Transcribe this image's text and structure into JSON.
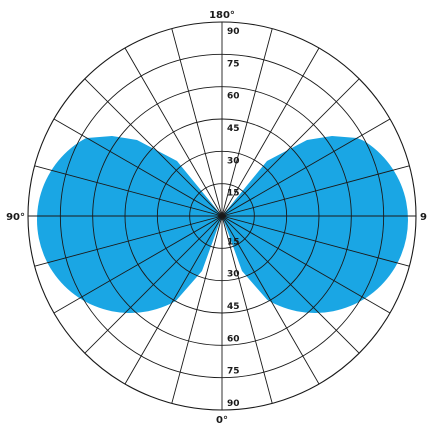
{
  "chart_data": {
    "type": "polar",
    "title": "",
    "fill_color": "#1aa6e4",
    "grid_color": "#1a1a1a",
    "background": "#ffffff",
    "radial_axis": {
      "range": [
        0,
        90
      ],
      "rings": [
        15,
        30,
        45,
        60,
        75,
        90
      ],
      "tick_labels": [
        "15",
        "30",
        "45",
        "60",
        "75",
        "90"
      ]
    },
    "angular_axis": {
      "spoke_step_deg": 15,
      "labels": [
        {
          "text": "0°",
          "angle": 0
        },
        {
          "text": "90°",
          "angle": 90
        },
        {
          "text": "180°",
          "angle": 180
        },
        {
          "text": "9",
          "angle": 270
        }
      ]
    },
    "series": [
      {
        "points": [
          {
            "angle": 90,
            "r": 85
          },
          {
            "angle": 60,
            "r": 85
          },
          {
            "angle": 45,
            "r": 85
          },
          {
            "angle": 30,
            "r": 85
          },
          {
            "angle": 15,
            "r": 85
          },
          {
            "angle": 0,
            "r": 0
          },
          {
            "angle": 165,
            "r": 85
          },
          {
            "angle": 150,
            "r": 85
          },
          {
            "angle": 135,
            "r": 85
          },
          {
            "angle": 120,
            "r": 85
          },
          {
            "angle": 105,
            "r": 85
          },
          {
            "angle": 270,
            "r": 85
          },
          {
            "angle": 240,
            "r": 85
          },
          {
            "angle": 225,
            "r": 85
          },
          {
            "angle": 210,
            "r": 85
          },
          {
            "angle": 195,
            "r": 85
          },
          {
            "angle": 285,
            "r": 85
          },
          {
            "angle": 300,
            "r": 85
          },
          {
            "angle": 315,
            "r": 85
          },
          {
            "angle": 330,
            "r": 85
          },
          {
            "angle": 345,
            "r": 85
          }
        ],
        "boundary_offsets": {
          "upper_lobes": [
            -41,
            -60,
            -77,
            -70,
            -55,
            -34,
            0
          ],
          "lower_lobes": [
            0,
            20,
            41,
            61,
            77,
            81,
            71,
            55
          ]
        }
      }
    ]
  }
}
